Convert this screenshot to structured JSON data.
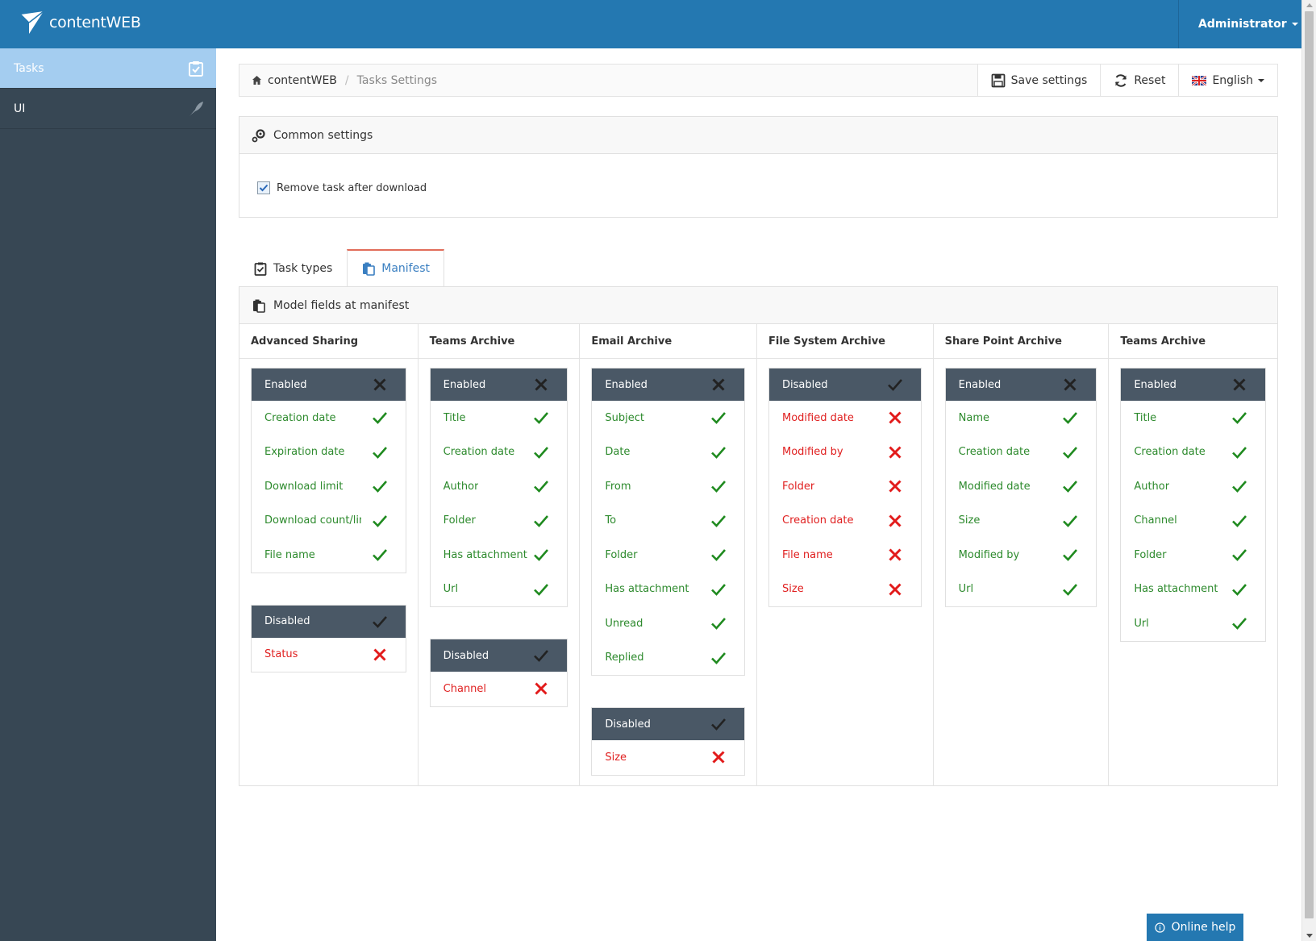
{
  "app": {
    "name": "contentWEB",
    "user": "Administrator"
  },
  "sidebar": {
    "items": [
      {
        "label": "Tasks",
        "icon": "clipboard-check-icon"
      },
      {
        "label": "UI",
        "icon": "feather-icon"
      }
    ]
  },
  "breadcrumb": {
    "home": "contentWEB",
    "current": "Tasks Settings"
  },
  "toolbar": {
    "save": "Save settings",
    "reset": "Reset",
    "language": "English"
  },
  "common": {
    "title": "Common settings",
    "remove_task": "Remove task after download",
    "remove_task_checked": true
  },
  "tabs": [
    {
      "label": "Task types"
    },
    {
      "label": "Manifest",
      "active": true
    }
  ],
  "manifest": {
    "title": "Model fields at manifest",
    "columns": [
      {
        "title": "Advanced Sharing",
        "enabled": {
          "label": "Enabled",
          "items": [
            "Creation date",
            "Expiration date",
            "Download limit",
            "Download count/limit",
            "File name"
          ]
        },
        "disabled": {
          "label": "Disabled",
          "items": [
            "Status"
          ]
        }
      },
      {
        "title": "Teams Archive",
        "enabled": {
          "label": "Enabled",
          "items": [
            "Title",
            "Creation date",
            "Author",
            "Folder",
            "Has attachment",
            "Url"
          ]
        },
        "disabled": {
          "label": "Disabled",
          "items": [
            "Channel"
          ]
        }
      },
      {
        "title": "Email Archive",
        "enabled": {
          "label": "Enabled",
          "items": [
            "Subject",
            "Date",
            "From",
            "To",
            "Folder",
            "Has attachment",
            "Unread",
            "Replied"
          ]
        },
        "disabled": {
          "label": "Disabled",
          "items": [
            "Size"
          ]
        }
      },
      {
        "title": "File System Archive",
        "disabled": {
          "label": "Disabled",
          "items": [
            "Modified date",
            "Modified by",
            "Folder",
            "Creation date",
            "File name",
            "Size"
          ]
        }
      },
      {
        "title": "Share Point Archive",
        "enabled": {
          "label": "Enabled",
          "items": [
            "Name",
            "Creation date",
            "Modified date",
            "Size",
            "Modified by",
            "Url"
          ]
        }
      },
      {
        "title": "Teams Archive",
        "enabled": {
          "label": "Enabled",
          "items": [
            "Title",
            "Creation date",
            "Author",
            "Channel",
            "Folder",
            "Has attachment",
            "Url"
          ]
        }
      }
    ]
  },
  "help": {
    "label": "Online help"
  },
  "colors": {
    "primary": "#2478b1",
    "sidebar": "#374754",
    "active_side": "#a4cdf0",
    "enabled_green": "#2d8a2d",
    "disabled_red": "#e02020",
    "box_header": "#4a5866"
  }
}
